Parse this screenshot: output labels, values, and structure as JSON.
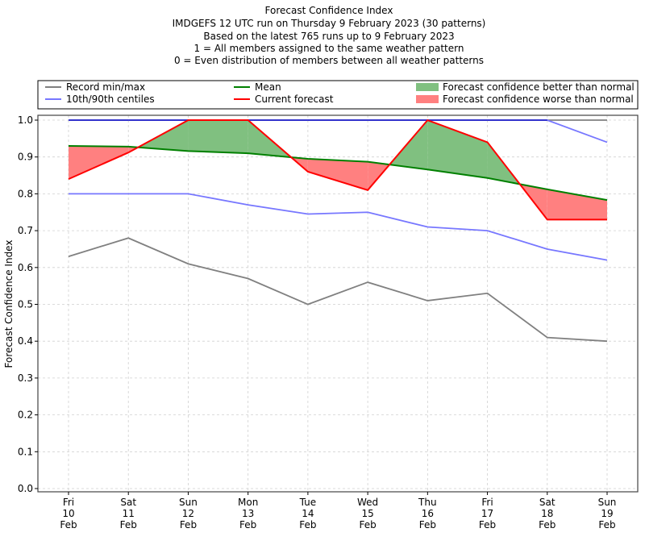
{
  "chart_data": {
    "type": "line",
    "title": [
      "Forecast Confidence Index",
      "IMDGEFS 12 UTC run on Thursday 9 February 2023 (30 patterns)",
      "Based on the latest 765 runs up to 9 February 2023",
      "1 = All members assigned to the same weather pattern",
      "0 = Even distribution of members between all weather patterns"
    ],
    "xlabel": "",
    "ylabel": "Forecast Confidence Index",
    "ylim": [
      0.0,
      1.0
    ],
    "yticks": [
      "0.0",
      "0.1",
      "0.2",
      "0.3",
      "0.4",
      "0.5",
      "0.6",
      "0.7",
      "0.8",
      "0.9",
      "1.0"
    ],
    "grid": true,
    "legend_position": "top",
    "categories": [
      [
        "Fri",
        "10",
        "Feb"
      ],
      [
        "Sat",
        "11",
        "Feb"
      ],
      [
        "Sun",
        "12",
        "Feb"
      ],
      [
        "Mon",
        "13",
        "Feb"
      ],
      [
        "Tue",
        "14",
        "Feb"
      ],
      [
        "Wed",
        "15",
        "Feb"
      ],
      [
        "Thu",
        "16",
        "Feb"
      ],
      [
        "Fri",
        "17",
        "Feb"
      ],
      [
        "Sat",
        "18",
        "Feb"
      ],
      [
        "Sun",
        "19",
        "Feb"
      ]
    ],
    "series": [
      {
        "name": "Record max",
        "legend_group": "Record min/max",
        "color": "#808080",
        "values": [
          1.0,
          1.0,
          1.0,
          1.0,
          1.0,
          1.0,
          1.0,
          1.0,
          1.0,
          1.0
        ]
      },
      {
        "name": "Record min",
        "legend_group": "Record min/max",
        "color": "#808080",
        "values": [
          0.63,
          0.68,
          0.61,
          0.57,
          0.5,
          0.56,
          0.51,
          0.53,
          0.41,
          0.4
        ]
      },
      {
        "name": "90th centile",
        "legend_group": "10th/90th centiles",
        "color": "#7777ff",
        "values": [
          1.0,
          1.0,
          1.0,
          1.0,
          1.0,
          1.0,
          1.0,
          1.0,
          1.0,
          0.94
        ]
      },
      {
        "name": "10th centile",
        "legend_group": "10th/90th centiles",
        "color": "#7777ff",
        "values": [
          0.8,
          0.8,
          0.8,
          0.77,
          0.745,
          0.75,
          0.71,
          0.7,
          0.65,
          0.62
        ]
      },
      {
        "name": "Mean",
        "color": "#008000",
        "values": [
          0.93,
          0.928,
          0.916,
          0.91,
          0.895,
          0.887,
          0.866,
          0.843,
          0.812,
          0.783
        ]
      },
      {
        "name": "Current forecast",
        "color": "#ff0000",
        "values": [
          0.84,
          0.912,
          1.0,
          1.0,
          0.86,
          0.81,
          1.0,
          0.94,
          0.73,
          0.73
        ]
      }
    ],
    "legend": [
      {
        "label": "Record min/max",
        "kind": "line",
        "color": "#808080"
      },
      {
        "label": "10th/90th centiles",
        "kind": "line",
        "color": "#7777ff"
      },
      {
        "label": "Mean",
        "kind": "line",
        "color": "#008000"
      },
      {
        "label": "Current forecast",
        "kind": "line",
        "color": "#ff0000"
      },
      {
        "label": "Forecast confidence better than normal",
        "kind": "patch",
        "color": "#80c080"
      },
      {
        "label": "Forecast confidence worse than normal",
        "kind": "patch",
        "color": "#ff8080"
      }
    ],
    "fill_better_color": "#80c080",
    "fill_worse_color": "#ff8080",
    "max_line_color": "#3333cc"
  }
}
